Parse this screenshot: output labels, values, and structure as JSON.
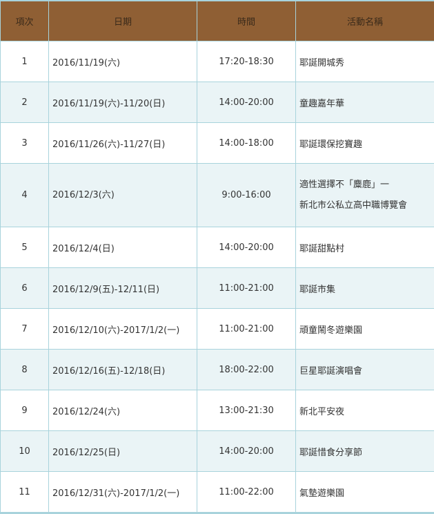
{
  "headers": [
    "項次",
    "日期",
    "時間",
    "活動名稱"
  ],
  "rows": [
    {
      "no": "1",
      "date": "2016/11/19(六)",
      "time": "17:20-18:30",
      "name": "耶誕開城秀"
    },
    {
      "no": "2",
      "date": "2016/11/19(六)-11/20(日)",
      "time": "14:00-20:00",
      "name": "童趣嘉年華"
    },
    {
      "no": "3",
      "date": "2016/11/26(六)-11/27(日)",
      "time": "14:00-18:00",
      "name": "耶誕環保挖寶趣"
    },
    {
      "no": "4",
      "date": "2016/12/3(六)",
      "time": "9:00-16:00",
      "name": "適性選擇不「麋鹿」一",
      "name2": "新北市公私立高中職博覽會"
    },
    {
      "no": "5",
      "date": "2016/12/4(日)",
      "time": "14:00-20:00",
      "name": "耶誕甜點村"
    },
    {
      "no": "6",
      "date": "2016/12/9(五)-12/11(日)",
      "time": "11:00-21:00",
      "name": "耶誕市集"
    },
    {
      "no": "7",
      "date": "2016/12/10(六)-2017/1/2(一)",
      "time": "11:00-21:00",
      "name": "頑童鬧冬遊樂園"
    },
    {
      "no": "8",
      "date": "2016/12/16(五)-12/18(日)",
      "time": "18:00-22:00",
      "name": "巨星耶誕演唱會"
    },
    {
      "no": "9",
      "date": "2016/12/24(六)",
      "time": "13:00-21:30",
      "name": "新北平安夜"
    },
    {
      "no": "10",
      "date": "2016/12/25(日)",
      "time": "14:00-20:00",
      "name": "耶誕惜食分享節"
    },
    {
      "no": "11",
      "date": "2016/12/31(六)-2017/1/2(一)",
      "time": "11:00-22:00",
      "name": "氣墊遊樂園"
    }
  ],
  "colors": {
    "header_bg": "#8f5f34",
    "border": "#a8d3dc",
    "alt_row": "#eaf4f6"
  }
}
